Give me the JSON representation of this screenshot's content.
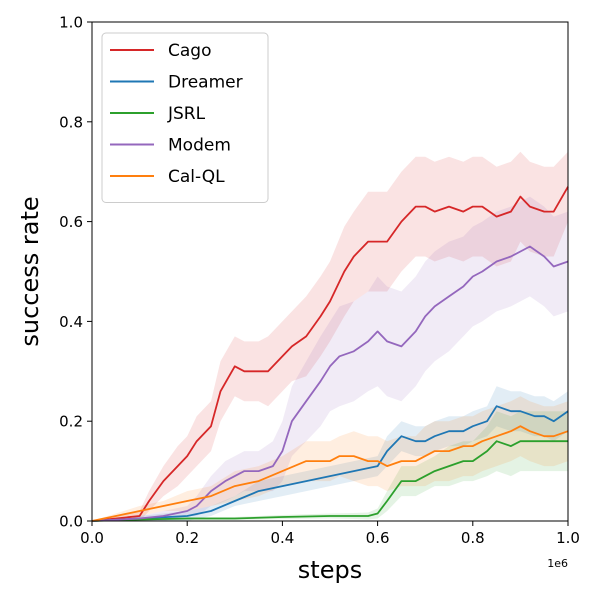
{
  "chart_data": {
    "type": "line",
    "title": "",
    "xlabel": "steps",
    "ylabel": "success rate",
    "x_offset_label": "1e6",
    "xlim": [
      0,
      1.0
    ],
    "ylim": [
      0,
      1.0
    ],
    "xticks": [
      "0.0",
      "0.2",
      "0.4",
      "0.6",
      "0.8",
      "1.0"
    ],
    "yticks": [
      "0.0",
      "0.2",
      "0.4",
      "0.6",
      "0.8",
      "1.0"
    ],
    "grid": false,
    "legend_position": "top-left",
    "series": [
      {
        "name": "Cago",
        "color": "#d62728",
        "x": [
          0,
          0.05,
          0.1,
          0.12,
          0.15,
          0.18,
          0.2,
          0.22,
          0.25,
          0.27,
          0.3,
          0.32,
          0.35,
          0.37,
          0.4,
          0.42,
          0.45,
          0.48,
          0.5,
          0.53,
          0.55,
          0.58,
          0.6,
          0.62,
          0.65,
          0.68,
          0.7,
          0.72,
          0.75,
          0.78,
          0.8,
          0.82,
          0.85,
          0.88,
          0.9,
          0.92,
          0.95,
          0.97,
          1.0
        ],
        "y": [
          0.0,
          0.005,
          0.01,
          0.04,
          0.08,
          0.11,
          0.13,
          0.16,
          0.19,
          0.26,
          0.31,
          0.3,
          0.3,
          0.3,
          0.33,
          0.35,
          0.37,
          0.41,
          0.44,
          0.5,
          0.53,
          0.56,
          0.56,
          0.56,
          0.6,
          0.63,
          0.63,
          0.62,
          0.63,
          0.62,
          0.63,
          0.63,
          0.61,
          0.62,
          0.65,
          0.63,
          0.62,
          0.62,
          0.67
        ],
        "std": [
          0.0,
          0.005,
          0.01,
          0.02,
          0.03,
          0.04,
          0.04,
          0.05,
          0.05,
          0.06,
          0.06,
          0.06,
          0.06,
          0.07,
          0.07,
          0.07,
          0.08,
          0.08,
          0.08,
          0.09,
          0.09,
          0.1,
          0.1,
          0.1,
          0.1,
          0.1,
          0.1,
          0.1,
          0.1,
          0.1,
          0.1,
          0.1,
          0.1,
          0.1,
          0.09,
          0.09,
          0.09,
          0.09,
          0.07
        ]
      },
      {
        "name": "Dreamer",
        "color": "#1f77b4",
        "x": [
          0,
          0.1,
          0.2,
          0.25,
          0.3,
          0.35,
          0.4,
          0.45,
          0.5,
          0.55,
          0.6,
          0.62,
          0.65,
          0.68,
          0.7,
          0.72,
          0.75,
          0.78,
          0.8,
          0.83,
          0.85,
          0.88,
          0.9,
          0.93,
          0.95,
          0.97,
          1.0
        ],
        "y": [
          0.0,
          0.005,
          0.01,
          0.02,
          0.04,
          0.06,
          0.07,
          0.08,
          0.09,
          0.1,
          0.11,
          0.14,
          0.17,
          0.16,
          0.16,
          0.17,
          0.18,
          0.18,
          0.19,
          0.2,
          0.23,
          0.22,
          0.22,
          0.21,
          0.21,
          0.2,
          0.22
        ],
        "std": [
          0.0,
          0.005,
          0.01,
          0.01,
          0.01,
          0.02,
          0.02,
          0.02,
          0.02,
          0.02,
          0.02,
          0.03,
          0.03,
          0.03,
          0.03,
          0.03,
          0.03,
          0.03,
          0.03,
          0.03,
          0.04,
          0.04,
          0.04,
          0.04,
          0.04,
          0.04,
          0.04
        ]
      },
      {
        "name": "JSRL",
        "color": "#2ca02c",
        "x": [
          0,
          0.1,
          0.2,
          0.3,
          0.4,
          0.5,
          0.55,
          0.58,
          0.6,
          0.62,
          0.65,
          0.68,
          0.7,
          0.72,
          0.75,
          0.78,
          0.8,
          0.83,
          0.85,
          0.88,
          0.9,
          0.92,
          0.95,
          1.0
        ],
        "y": [
          0.0,
          0.003,
          0.005,
          0.005,
          0.008,
          0.01,
          0.01,
          0.01,
          0.015,
          0.04,
          0.08,
          0.08,
          0.09,
          0.1,
          0.11,
          0.12,
          0.12,
          0.14,
          0.16,
          0.15,
          0.16,
          0.16,
          0.16,
          0.16
        ],
        "std": [
          0.0,
          0.002,
          0.003,
          0.003,
          0.004,
          0.005,
          0.006,
          0.007,
          0.01,
          0.02,
          0.03,
          0.03,
          0.03,
          0.03,
          0.04,
          0.04,
          0.04,
          0.05,
          0.06,
          0.06,
          0.06,
          0.06,
          0.06,
          0.06
        ]
      },
      {
        "name": "Modem",
        "color": "#9467bd",
        "x": [
          0,
          0.1,
          0.15,
          0.2,
          0.22,
          0.25,
          0.28,
          0.3,
          0.32,
          0.35,
          0.38,
          0.4,
          0.42,
          0.45,
          0.48,
          0.5,
          0.52,
          0.55,
          0.58,
          0.6,
          0.62,
          0.65,
          0.68,
          0.7,
          0.72,
          0.75,
          0.78,
          0.8,
          0.82,
          0.85,
          0.88,
          0.9,
          0.92,
          0.95,
          0.97,
          1.0
        ],
        "y": [
          0.0,
          0.005,
          0.01,
          0.02,
          0.03,
          0.06,
          0.08,
          0.09,
          0.1,
          0.1,
          0.11,
          0.14,
          0.2,
          0.24,
          0.28,
          0.31,
          0.33,
          0.34,
          0.36,
          0.38,
          0.36,
          0.35,
          0.38,
          0.41,
          0.43,
          0.45,
          0.47,
          0.49,
          0.5,
          0.52,
          0.53,
          0.54,
          0.55,
          0.53,
          0.51,
          0.52
        ],
        "std": [
          0.0,
          0.005,
          0.01,
          0.01,
          0.02,
          0.03,
          0.04,
          0.04,
          0.04,
          0.04,
          0.05,
          0.06,
          0.07,
          0.08,
          0.09,
          0.09,
          0.1,
          0.1,
          0.1,
          0.11,
          0.11,
          0.11,
          0.11,
          0.11,
          0.11,
          0.11,
          0.1,
          0.1,
          0.1,
          0.1,
          0.1,
          0.1,
          0.1,
          0.1,
          0.1,
          0.1
        ]
      },
      {
        "name": "Cal-QL",
        "color": "#ff7f0e",
        "x": [
          0,
          0.05,
          0.1,
          0.15,
          0.2,
          0.25,
          0.3,
          0.35,
          0.4,
          0.45,
          0.5,
          0.52,
          0.55,
          0.58,
          0.6,
          0.62,
          0.65,
          0.68,
          0.7,
          0.72,
          0.75,
          0.78,
          0.8,
          0.82,
          0.85,
          0.88,
          0.9,
          0.92,
          0.95,
          0.97,
          1.0
        ],
        "y": [
          0.0,
          0.01,
          0.02,
          0.03,
          0.04,
          0.05,
          0.07,
          0.08,
          0.1,
          0.12,
          0.12,
          0.13,
          0.13,
          0.12,
          0.12,
          0.11,
          0.12,
          0.12,
          0.13,
          0.14,
          0.14,
          0.15,
          0.15,
          0.16,
          0.17,
          0.18,
          0.19,
          0.18,
          0.17,
          0.17,
          0.18
        ],
        "std": [
          0.0,
          0.005,
          0.01,
          0.01,
          0.02,
          0.02,
          0.03,
          0.03,
          0.03,
          0.04,
          0.04,
          0.04,
          0.05,
          0.05,
          0.05,
          0.05,
          0.05,
          0.05,
          0.06,
          0.06,
          0.06,
          0.06,
          0.06,
          0.06,
          0.06,
          0.06,
          0.06,
          0.06,
          0.06,
          0.06,
          0.06
        ]
      }
    ]
  }
}
